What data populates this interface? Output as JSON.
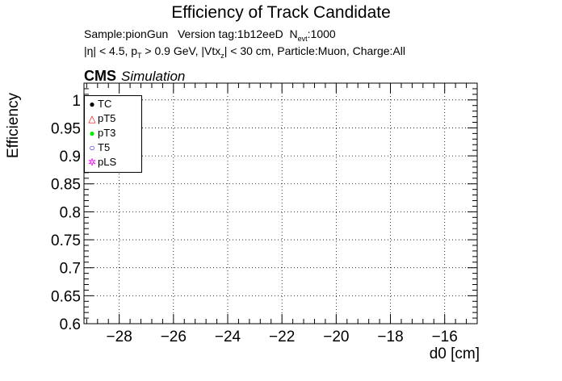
{
  "chart_data": {
    "type": "scatter",
    "title": "Efficiency of Track Candidate",
    "info_line1": {
      "sample": "Sample:pionGun",
      "version": "Version tag:1b12eeD",
      "n_prefix": "N",
      "n_sub": "evt",
      "n_value": ":1000"
    },
    "info_line2": {
      "eta": "|η| < 4.5, p",
      "pt_sub": "T",
      "pt_rest": " > 0.9 GeV, |Vtx",
      "vtx_sub": "z",
      "rest": "| < 30 cm, Particle:Muon, Charge:All"
    },
    "cms_label": "CMS",
    "cms_sublabel": "Simulation",
    "xlabel": "d0 [cm]",
    "ylabel": "Efficiency",
    "xlim": [
      -29.3,
      -14.8
    ],
    "ylim": [
      0.6,
      1.03
    ],
    "x_ticks": [
      "-28",
      "-26",
      "-24",
      "-22",
      "-20",
      "-18",
      "-16"
    ],
    "x_tick_values": [
      -28,
      -26,
      -24,
      -22,
      -20,
      -18,
      -16
    ],
    "y_ticks": [
      "0.6",
      "0.65",
      "0.7",
      "0.75",
      "0.8",
      "0.85",
      "0.9",
      "0.95",
      "1"
    ],
    "y_tick_values": [
      0.6,
      0.65,
      0.7,
      0.75,
      0.8,
      0.85,
      0.9,
      0.95,
      1.0
    ],
    "grid": true,
    "legend_position": "top-left",
    "series": [
      {
        "name": "TC",
        "color": "#000000",
        "marker": "circle",
        "values": []
      },
      {
        "name": "pT5",
        "color": "#ff0000",
        "marker": "triangle",
        "values": []
      },
      {
        "name": "pT3",
        "color": "#00ff00",
        "marker": "circle",
        "values": []
      },
      {
        "name": "T5",
        "color": "#0000ff",
        "marker": "open-circle",
        "values": []
      },
      {
        "name": "pLS",
        "color": "#ff00ff",
        "marker": "star",
        "values": []
      }
    ]
  }
}
